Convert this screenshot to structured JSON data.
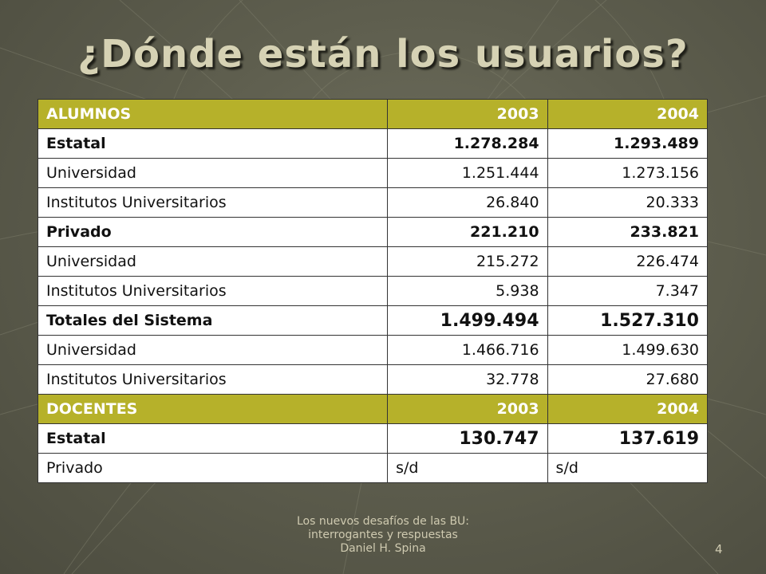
{
  "slide": {
    "title": "¿Dónde están los usuarios?",
    "footer_line1": "Los nuevos desafíos de las BU:",
    "footer_line2": "interrogantes y respuestas",
    "footer_line3": "Daniel H. Spina",
    "page_number": "4"
  },
  "colors": {
    "header_bg": "#b6b12a",
    "header_text": "#ffffff",
    "background": "#5e5e4e",
    "title": "#d6d2b4"
  },
  "table": {
    "rows": [
      {
        "c1": "ALUMNOS",
        "c2": "2003",
        "c3": "2004"
      },
      {
        "c1": "Estatal",
        "c2": "1.278.284",
        "c3": "1.293.489"
      },
      {
        "c1": "Universidad",
        "c2": "1.251.444",
        "c3": "1.273.156"
      },
      {
        "c1": "Institutos Universitarios",
        "c2": "26.840",
        "c3": "20.333"
      },
      {
        "c1": "Privado",
        "c2": "221.210",
        "c3": "233.821"
      },
      {
        "c1": "Universidad",
        "c2": "215.272",
        "c3": "226.474"
      },
      {
        "c1": "Institutos Universitarios",
        "c2": "5.938",
        "c3": "7.347"
      },
      {
        "c1": "Totales del Sistema",
        "c2": "1.499.494",
        "c3": "1.527.310"
      },
      {
        "c1": "Universidad",
        "c2": "1.466.716",
        "c3": "1.499.630"
      },
      {
        "c1": "Institutos Universitarios",
        "c2": "32.778",
        "c3": "27.680"
      },
      {
        "c1": "DOCENTES",
        "c2": "2003",
        "c3": "2004"
      },
      {
        "c1": "Estatal",
        "c2": "130.747",
        "c3": "137.619"
      },
      {
        "c1": "Privado",
        "c2": "s/d",
        "c3": "s/d"
      }
    ]
  }
}
